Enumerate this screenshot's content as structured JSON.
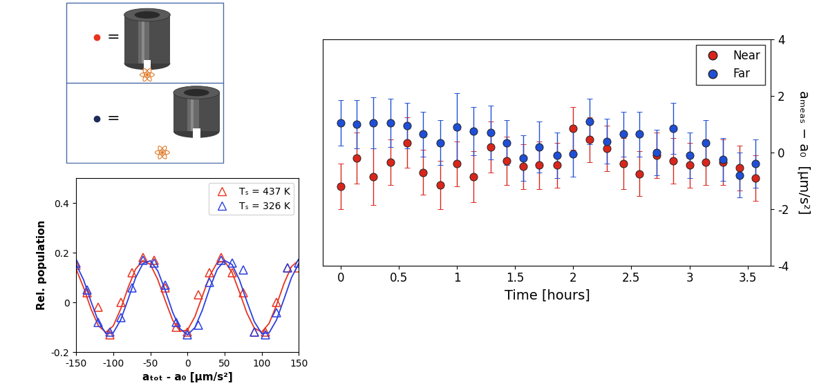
{
  "key": [
    {
      "color": "#e8331f",
      "text": "="
    },
    {
      "color": "#1c2b5a",
      "text": "="
    }
  ],
  "chart_data": [
    {
      "type": "scatter",
      "x_label": "aₜₒₜ - a₀ [μm/s²]",
      "y_label": "Rel. population",
      "xlim": [
        -150,
        150
      ],
      "xticks": [
        -150,
        -100,
        -50,
        0,
        50,
        100,
        150
      ],
      "ylim": [
        -0.2,
        0.5
      ],
      "yticks": [
        -0.2,
        0,
        0.2,
        0.4
      ],
      "grid": false,
      "legend": "upper right",
      "fit_x": [
        -150,
        -140,
        -130,
        -120,
        -110,
        -100,
        -90,
        -80,
        -70,
        -60,
        -50,
        -40,
        -30,
        -20,
        -10,
        0,
        10,
        20,
        30,
        40,
        50,
        60,
        70,
        80,
        90,
        100,
        110,
        120,
        130,
        140,
        150
      ],
      "series": [
        {
          "name": "Tₛ = 437 K",
          "color": "#e8331f",
          "marker": "triangle",
          "line_style": "solid",
          "x": [
            -150,
            -135,
            -120,
            -105,
            -90,
            -75,
            -60,
            -45,
            -30,
            -15,
            0,
            15,
            30,
            45,
            60,
            75,
            90,
            105,
            120,
            135,
            150
          ],
          "values": [
            0.15,
            0.04,
            -0.02,
            -0.13,
            0.0,
            0.12,
            0.18,
            0.17,
            0.06,
            -0.1,
            -0.12,
            0.03,
            0.12,
            0.18,
            0.12,
            0.04,
            -0.12,
            -0.12,
            0.0,
            0.14,
            0.14
          ],
          "fit": [
            0.134,
            0.06,
            -0.026,
            -0.094,
            -0.12,
            -0.094,
            -0.026,
            0.06,
            0.134,
            0.169,
            0.153,
            0.092,
            0.008,
            -0.071,
            -0.116,
            -0.111,
            -0.057,
            0.025,
            0.107,
            0.161,
            0.166,
            0.121,
            0.042,
            -0.042,
            -0.103,
            -0.119,
            -0.084,
            -0.01,
            0.076,
            0.144,
            0.17
          ]
        },
        {
          "name": "Tₛ = 326 K",
          "color": "#2a3fe0",
          "marker": "triangle",
          "line_style": "solid",
          "x": [
            -150,
            -135,
            -120,
            -105,
            -90,
            -75,
            -60,
            -45,
            -30,
            -15,
            0,
            15,
            30,
            45,
            60,
            75,
            90,
            105,
            120,
            135,
            150
          ],
          "values": [
            0.16,
            0.05,
            -0.08,
            -0.12,
            -0.06,
            0.06,
            0.17,
            0.16,
            0.07,
            -0.08,
            -0.13,
            -0.09,
            0.08,
            0.17,
            0.16,
            0.13,
            -0.12,
            -0.13,
            -0.04,
            0.14,
            0.16
          ],
          "fit": [
            0.153,
            0.091,
            0.004,
            -0.077,
            -0.125,
            -0.122,
            -0.07,
            0.013,
            0.099,
            0.157,
            0.168,
            0.127,
            0.049,
            -0.039,
            -0.106,
            -0.13,
            -0.101,
            -0.031,
            0.058,
            0.133,
            0.169,
            0.153,
            0.091,
            0.004,
            -0.077,
            -0.125,
            -0.122,
            -0.07,
            0.013,
            0.099,
            0.157
          ]
        }
      ]
    },
    {
      "type": "scatter",
      "x_label": "Time [hours]",
      "y_label": "aₘₑₐₛ − a₀  [μm/s²]",
      "xlim": [
        -0.15,
        3.7
      ],
      "xticks": [
        0,
        0.5,
        1,
        1.5,
        2,
        2.5,
        3,
        3.5
      ],
      "ylim": [
        -4,
        4
      ],
      "yticks": [
        -4,
        -2,
        0,
        2,
        4
      ],
      "grid": false,
      "legend": "upper right",
      "series": [
        {
          "name": "Near",
          "color": "#d9261c",
          "marker": "circle",
          "x": [
            0,
            0.14,
            0.28,
            0.43,
            0.57,
            0.71,
            0.86,
            1.0,
            1.14,
            1.29,
            1.43,
            1.57,
            1.71,
            1.86,
            2.0,
            2.14,
            2.29,
            2.43,
            2.57,
            2.72,
            2.86,
            3.0,
            3.14,
            3.29,
            3.43,
            3.57
          ],
          "values": [
            -1.2,
            -0.2,
            -0.85,
            -0.35,
            0.35,
            -0.7,
            -1.15,
            -0.4,
            -0.85,
            0.2,
            -0.3,
            -0.5,
            -0.45,
            -0.45,
            0.85,
            0.45,
            0.15,
            -0.4,
            -0.75,
            -0.1,
            -0.3,
            -0.45,
            -0.35,
            -0.35,
            -0.55,
            -0.9
          ],
          "errors": [
            0.8,
            0.9,
            1.0,
            0.8,
            0.9,
            0.8,
            0.85,
            0.8,
            0.9,
            0.9,
            0.85,
            0.8,
            0.85,
            0.8,
            0.75,
            0.8,
            0.8,
            0.9,
            0.8,
            0.8,
            0.8,
            0.8,
            0.8,
            0.8,
            0.8,
            0.8
          ]
        },
        {
          "name": "Far",
          "color": "#1f4fd6",
          "marker": "circle",
          "x": [
            0,
            0.14,
            0.28,
            0.43,
            0.57,
            0.71,
            0.86,
            1.0,
            1.14,
            1.29,
            1.43,
            1.57,
            1.71,
            1.86,
            2.0,
            2.14,
            2.29,
            2.43,
            2.57,
            2.72,
            2.86,
            3.0,
            3.14,
            3.29,
            3.43,
            3.57
          ],
          "values": [
            1.05,
            1.0,
            1.05,
            1.05,
            0.95,
            0.65,
            0.35,
            0.9,
            0.75,
            0.7,
            0.35,
            -0.2,
            0.2,
            -0.1,
            -0.05,
            1.1,
            0.4,
            0.65,
            0.65,
            0.0,
            0.85,
            -0.1,
            0.35,
            -0.25,
            -0.8,
            -0.4
          ],
          "errors": [
            0.8,
            0.85,
            0.9,
            0.85,
            0.8,
            0.8,
            0.8,
            1.2,
            0.85,
            0.95,
            0.8,
            0.8,
            0.9,
            0.8,
            0.8,
            0.8,
            0.8,
            0.8,
            0.8,
            0.8,
            0.9,
            0.8,
            0.8,
            0.75,
            0.8,
            0.85
          ]
        }
      ]
    }
  ]
}
